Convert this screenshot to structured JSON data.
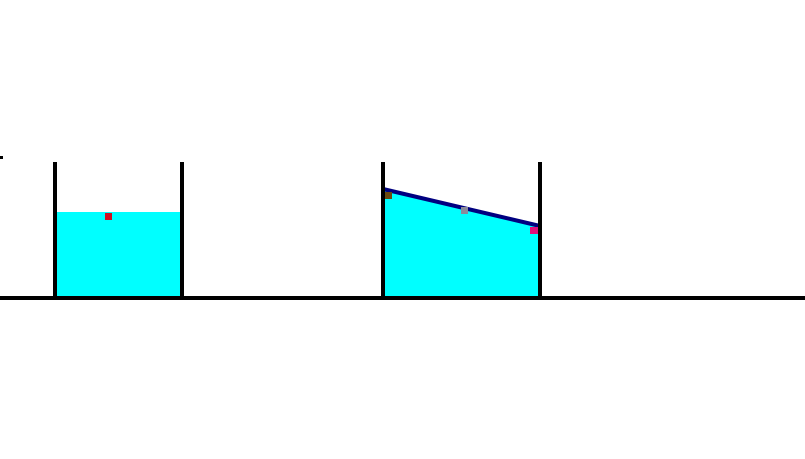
{
  "colors": {
    "background": "#ffffff",
    "wall": "#000000",
    "ground": "#000000",
    "water": "#00ffff",
    "surface_line": "#000080",
    "marker_left_tank": "#d01020",
    "marker_right_start": "#6b4a10",
    "marker_right_middle": "#8a8a9a",
    "marker_right_end": "#e0107a"
  },
  "scene": {
    "tanks": [
      {
        "id": "left-tank",
        "surface": "flat"
      },
      {
        "id": "right-tank",
        "surface": "sloped"
      }
    ]
  }
}
